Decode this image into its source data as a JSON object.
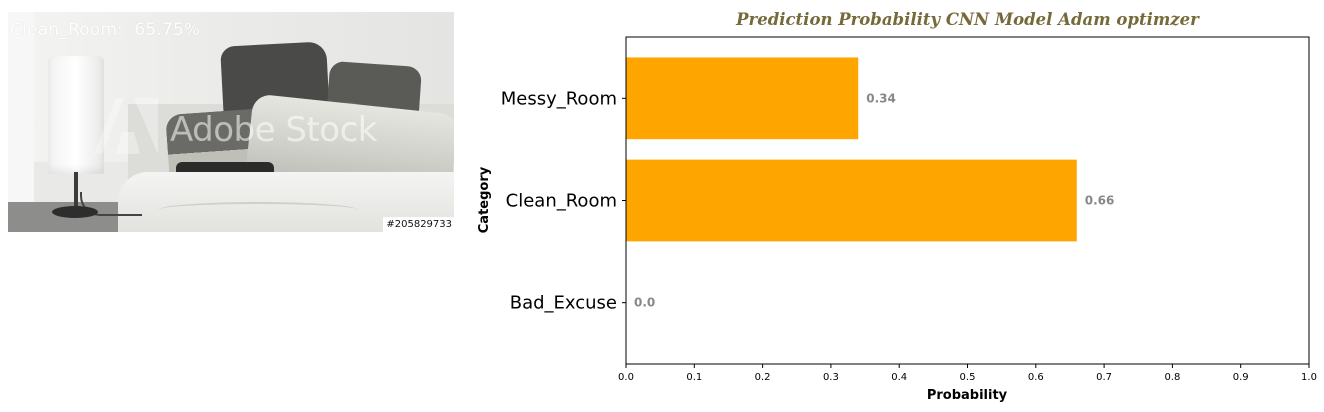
{
  "image_panel": {
    "prediction_label": "Clean_Room:  65.75%",
    "watermark_text": "Adobe Stock",
    "stock_id": "#205829733"
  },
  "chart_data": {
    "type": "bar",
    "orientation": "horizontal",
    "title": "Prediction Probability CNN Model Adam optimzer",
    "xlabel": "Probability",
    "ylabel": "Category",
    "categories": [
      "Bad_Excuse",
      "Clean_Room",
      "Messy_Room"
    ],
    "values": [
      0.0,
      0.66,
      0.34
    ],
    "value_labels": [
      "0.0",
      "0.66",
      "0.34"
    ],
    "xlim": [
      0.0,
      1.0
    ],
    "xticks": [
      "0.0",
      "0.1",
      "0.2",
      "0.3",
      "0.4",
      "0.5",
      "0.6",
      "0.7",
      "0.8",
      "0.9",
      "1.0"
    ],
    "grid": false,
    "legend": false,
    "colors": {
      "bar": "#FFA500",
      "value_label": "#888888",
      "title": "#766A3A"
    }
  }
}
